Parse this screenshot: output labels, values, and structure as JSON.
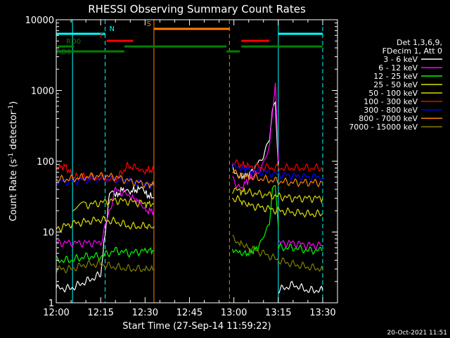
{
  "chart_data": {
    "type": "line",
    "title": "RHESSI Observing Summary Count Rates",
    "xlabel": "Start Time (27-Sep-14 11:59:22)",
    "ylabel_main": "Count Rate (s",
    "ylabel_sup1": "-1",
    "ylabel_mid": " detector",
    "ylabel_sup2": "-1",
    "ylabel_end": ")",
    "x_unit": "minutes after 12:00 UT",
    "xlim": [
      0,
      95
    ],
    "ylim": [
      1,
      10000
    ],
    "y_scale": "log",
    "x_ticks": [
      {
        "value": 0,
        "label": "12:00"
      },
      {
        "value": 15,
        "label": "12:15"
      },
      {
        "value": 30,
        "label": "12:30"
      },
      {
        "value": 45,
        "label": "12:45"
      },
      {
        "value": 60,
        "label": "13:00"
      },
      {
        "value": 75,
        "label": "13:15"
      },
      {
        "value": 90,
        "label": "13:30"
      }
    ],
    "y_ticks": [
      {
        "value": 1,
        "label": "1"
      },
      {
        "value": 10,
        "label": "10"
      },
      {
        "value": 100,
        "label": "100"
      },
      {
        "value": 1000,
        "label": "1000"
      },
      {
        "value": 10000,
        "label": "10000"
      }
    ],
    "legend": {
      "position": "right",
      "header": [
        "Det 1,3,6,9,",
        "FDecim 1, Att 0"
      ],
      "entries": [
        {
          "label": "3 - 6 keV",
          "color": "#ffffff"
        },
        {
          "label": "6 - 12 keV",
          "color": "#ff00ff"
        },
        {
          "label": "12 - 25 keV",
          "color": "#00ff00"
        },
        {
          "label": "25 - 50 keV",
          "color": "#e0e000"
        },
        {
          "label": "50 - 100 keV",
          "color": "#d8d800"
        },
        {
          "label": "100 - 300 keV",
          "color": "#ff0000"
        },
        {
          "label": "300 - 800 keV",
          "color": "#0000ff"
        },
        {
          "label": "800 - 7000 keV",
          "color": "#ff8800"
        },
        {
          "label": "7000 - 15000 keV",
          "color": "#808000"
        }
      ]
    },
    "flags": [
      {
        "label": "N",
        "color": "#00ffff",
        "level": 1,
        "segments": [
          [
            0,
            16.5
          ],
          [
            75,
            90
          ]
        ]
      },
      {
        "label": "F",
        "color": "#ff0000",
        "level": 2,
        "segments": [
          [
            17,
            26
          ],
          [
            62.5,
            72
          ]
        ]
      },
      {
        "label": "S",
        "color": "#ff8000",
        "level": 0,
        "segments": [
          [
            33,
            58.5
          ]
        ]
      },
      {
        "label": "RD0",
        "color": "#008000",
        "level": 3,
        "segments": [
          [
            0.5,
            6
          ],
          [
            23,
            57.5
          ],
          [
            62.5,
            90
          ]
        ]
      },
      {
        "label": "RD6",
        "color": "#008000",
        "level": 4,
        "segments": [
          [
            0,
            23
          ],
          [
            57.5,
            62
          ]
        ]
      }
    ],
    "vlines": [
      {
        "x": 5.5,
        "color": "#00ffff",
        "style": "solid"
      },
      {
        "x": 16.5,
        "color": "#00ffff",
        "style": "dashed"
      },
      {
        "x": 33,
        "color": "#ff8000",
        "style": "solid"
      },
      {
        "x": 58.5,
        "color": "#ff8000",
        "style": "dashed"
      },
      {
        "x": 75,
        "color": "#00ffff",
        "style": "solid"
      },
      {
        "x": 90,
        "color": "#00ffff",
        "style": "dashed"
      }
    ],
    "series": [
      {
        "name": "3 - 6 keV",
        "color": "#ffffff",
        "segments": [
          {
            "x": [
              0,
              5,
              10,
              15,
              18,
              20,
              23,
              25,
              28,
              30,
              33
            ],
            "y": [
              1.6,
              1.6,
              2,
              2.5,
              35,
              32,
              42,
              38,
              40,
              35,
              30
            ]
          },
          {
            "x": [
              59.5,
              62,
              65,
              68,
              70,
              72,
              73,
              74,
              75
            ],
            "y": [
              80,
              60,
              65,
              90,
              110,
              200,
              500,
              700,
              90
            ]
          },
          {
            "x": [
              75,
              80,
              85,
              90
            ],
            "y": [
              1.5,
              1.8,
              1.5,
              1.5
            ]
          }
        ]
      },
      {
        "name": "6 - 12 keV",
        "color": "#ff00ff",
        "segments": [
          {
            "x": [
              0,
              5,
              10,
              15,
              20,
              25,
              28,
              30,
              33
            ],
            "y": [
              7,
              7,
              7,
              7,
              40,
              32,
              26,
              20,
              20
            ]
          },
          {
            "x": [
              59.5,
              62,
              65,
              68,
              70,
              72,
              74,
              75
            ],
            "y": [
              60,
              40,
              55,
              70,
              90,
              150,
              1300,
              100
            ]
          },
          {
            "x": [
              75,
              80,
              85,
              90
            ],
            "y": [
              7,
              7,
              6.5,
              6.5
            ]
          }
        ]
      },
      {
        "name": "12 - 25 keV",
        "color": "#00ff00",
        "segments": [
          {
            "x": [
              0,
              5,
              10,
              15,
              20,
              25,
              30,
              33
            ],
            "y": [
              4,
              4,
              4.5,
              4.5,
              5.5,
              5,
              5.5,
              5.5
            ]
          },
          {
            "x": [
              59.5,
              62,
              65,
              68,
              70,
              72,
              73,
              74,
              75
            ],
            "y": [
              6,
              5,
              5,
              6,
              9,
              12,
              40,
              40,
              12
            ]
          },
          {
            "x": [
              75,
              80,
              85,
              90
            ],
            "y": [
              6,
              6,
              5.5,
              5.5
            ]
          }
        ]
      },
      {
        "name": "25 - 50 keV",
        "color": "#e0e000",
        "segments": [
          {
            "x": [
              0,
              5,
              10,
              15,
              20,
              25,
              30,
              33
            ],
            "y": [
              11,
              13,
              14,
              15,
              14,
              12,
              12,
              12
            ]
          },
          {
            "x": [
              59.5,
              62,
              65,
              70,
              75,
              80,
              85,
              90
            ],
            "y": [
              30,
              28,
              24,
              22,
              20,
              19,
              18,
              18
            ]
          }
        ]
      },
      {
        "name": "50 - 100 keV",
        "color": "#d8d800",
        "segments": [
          {
            "x": [
              5.5,
              10,
              15,
              20,
              25,
              30,
              33
            ],
            "y": [
              22,
              24,
              26,
              28,
              27,
              25,
              25
            ]
          },
          {
            "x": [
              59.5,
              62,
              65,
              70,
              75,
              80,
              85,
              90
            ],
            "y": [
              40,
              38,
              36,
              34,
              32,
              30,
              30,
              30
            ]
          }
        ]
      },
      {
        "name": "100 - 300 keV",
        "color": "#ff0000",
        "segments": [
          {
            "x": [
              0,
              3,
              6,
              10,
              15,
              20,
              24,
              28,
              30,
              33
            ],
            "y": [
              80,
              85,
              60,
              60,
              58,
              55,
              85,
              80,
              75,
              75
            ]
          },
          {
            "x": [
              59.5,
              62,
              65,
              70,
              75,
              80,
              85,
              90
            ],
            "y": [
              95,
              90,
              85,
              82,
              80,
              80,
              80,
              80
            ]
          }
        ]
      },
      {
        "name": "300 - 800 keV",
        "color": "#0000ff",
        "segments": [
          {
            "x": [
              0,
              5,
              10,
              15,
              20,
              25,
              30,
              33
            ],
            "y": [
              52,
              52,
              55,
              58,
              56,
              52,
              48,
              45
            ]
          },
          {
            "x": [
              59.5,
              62,
              65,
              70,
              75,
              80,
              85,
              90
            ],
            "y": [
              85,
              80,
              75,
              70,
              65,
              62,
              60,
              60
            ]
          }
        ]
      },
      {
        "name": "800 - 7000 keV",
        "color": "#ff8800",
        "segments": [
          {
            "x": [
              0,
              5,
              10,
              15,
              20,
              25,
              30,
              33
            ],
            "y": [
              55,
              56,
              60,
              62,
              60,
              52,
              48,
              45
            ]
          },
          {
            "x": [
              59.5,
              62,
              65,
              70,
              75,
              80,
              85,
              90
            ],
            "y": [
              70,
              65,
              60,
              56,
              52,
              50,
              50,
              50
            ]
          }
        ]
      },
      {
        "name": "7000 - 15000 keV",
        "color": "#808000",
        "segments": [
          {
            "x": [
              0,
              5,
              10,
              15,
              20,
              25,
              30,
              33
            ],
            "y": [
              3,
              3,
              3.5,
              3.5,
              3.2,
              3,
              3,
              3
            ]
          },
          {
            "x": [
              59.5,
              62,
              65,
              70,
              75,
              80,
              85,
              90
            ],
            "y": [
              8,
              7,
              6,
              5,
              4,
              3.5,
              3.2,
              3
            ]
          }
        ]
      }
    ]
  },
  "footer": {
    "timestamp": "20-Oct-2021 11:51"
  }
}
